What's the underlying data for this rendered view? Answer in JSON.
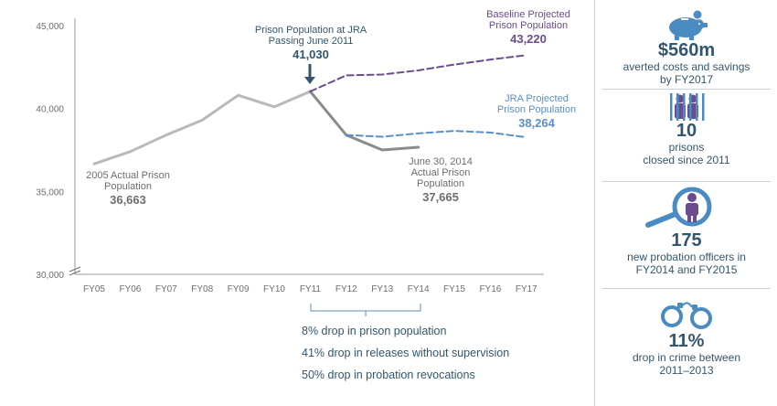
{
  "chart_data": {
    "type": "line",
    "categories": [
      "FY05",
      "FY06",
      "FY07",
      "FY08",
      "FY09",
      "FY10",
      "FY11",
      "FY12",
      "FY13",
      "FY14",
      "FY15",
      "FY16",
      "FY17"
    ],
    "y_ticks": [
      "30,000",
      "35,000",
      "40,000",
      "45,000"
    ],
    "ylim": [
      30000,
      45000
    ],
    "grid": false,
    "series": [
      {
        "name": "",
        "style": "solid",
        "color": "#b8b9bb",
        "points": [
          [
            "FY05",
            36663
          ],
          [
            "FY06",
            37400
          ],
          [
            "FY07",
            38400
          ],
          [
            "FY08",
            39300
          ],
          [
            "FY09",
            40800
          ],
          [
            "FY10",
            40100
          ],
          [
            "FY11",
            41030
          ]
        ]
      },
      {
        "name": "",
        "style": "solid",
        "color": "#8a8b8d",
        "points": [
          [
            "FY11",
            41030
          ],
          [
            "FY12",
            38400
          ],
          [
            "FY13",
            37500
          ],
          [
            "FY14",
            37665
          ]
        ]
      },
      {
        "name": "Baseline Projected Prison Population",
        "style": "dashed",
        "color": "#6b4c8c",
        "points": [
          [
            "FY11",
            41030
          ],
          [
            "FY12",
            42000
          ],
          [
            "FY13",
            42050
          ],
          [
            "FY14",
            42300
          ],
          [
            "FY15",
            42650
          ],
          [
            "FY16",
            42950
          ],
          [
            "FY17",
            43220
          ]
        ]
      },
      {
        "name": "JRA Projected Prison Population",
        "style": "dashed",
        "color": "#5b8fc7",
        "points": [
          [
            "FY12",
            38400
          ],
          [
            "FY13",
            38300
          ],
          [
            "FY14",
            38500
          ],
          [
            "FY15",
            38650
          ],
          [
            "FY16",
            38550
          ],
          [
            "FY17",
            38264
          ]
        ]
      }
    ],
    "annotations": {
      "start": {
        "label_lines": [
          "2005 Actual Prison",
          "Population"
        ],
        "value": "36,663"
      },
      "jra": {
        "label_lines": [
          "Prison Population at JRA",
          "Passing June 2011"
        ],
        "value": "41,030"
      },
      "baseline": {
        "label_lines": [
          "Baseline Projected",
          "Prison Population"
        ],
        "value": "43,220"
      },
      "jra_projected": {
        "label_lines": [
          "JRA Projected",
          "Prison Population"
        ],
        "value": "38,264"
      },
      "actual_2014": {
        "label_lines": [
          "June 30, 2014",
          "Actual Prison",
          "Population"
        ],
        "value": "37,665"
      }
    }
  },
  "impacts": [
    "8% drop in prison population",
    "41% drop in releases without supervision",
    "50% drop in probation revocations"
  ],
  "stats": [
    {
      "icon": "piggy-bank-icon",
      "value": "$560m",
      "desc_lines": [
        "averted costs and savings",
        "by FY2017"
      ]
    },
    {
      "icon": "prison-bars-icon",
      "value": "10",
      "desc_lines": [
        "prisons",
        "closed since 2011"
      ]
    },
    {
      "icon": "magnifier-person-icon",
      "value": "175",
      "desc_lines": [
        "new probation officers in",
        "FY2014 and FY2015"
      ]
    },
    {
      "icon": "handcuffs-icon",
      "value": "11%",
      "desc_lines": [
        "drop in crime between",
        "2011–2013"
      ]
    }
  ],
  "colors": {
    "primary_text": "#33566e",
    "axis": "#6d6e71",
    "actual": "#b8b9bb",
    "actual_post": "#8a8b8d",
    "baseline": "#6b4c8c",
    "jra": "#5b8fc7",
    "icon_blue": "#4a8bc2",
    "icon_purple": "#6b4c8c"
  }
}
